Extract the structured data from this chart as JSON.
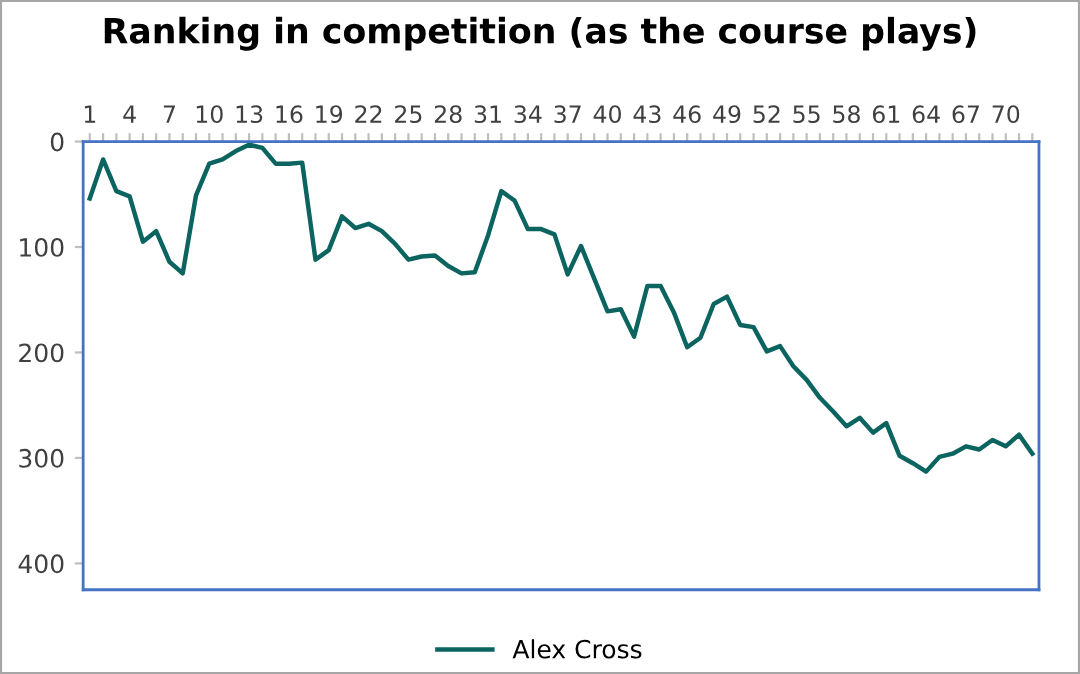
{
  "chart_data": {
    "type": "line",
    "title": "Ranking in competition (as the course plays)",
    "categories": [
      "1",
      null,
      null,
      "4",
      null,
      null,
      "7",
      null,
      null,
      "10",
      null,
      null,
      "13",
      null,
      null,
      "16",
      null,
      null,
      "19",
      null,
      null,
      "22",
      null,
      null,
      "25",
      null,
      null,
      "28",
      null,
      null,
      "31",
      null,
      null,
      "34",
      null,
      null,
      "37",
      null,
      null,
      "40",
      null,
      null,
      "43",
      null,
      null,
      "46",
      null,
      null,
      "49",
      null,
      null,
      "52",
      null,
      null,
      "55",
      null,
      null,
      "58",
      null,
      null,
      "61",
      null,
      null,
      "64",
      null,
      null,
      "67",
      null,
      null,
      "70",
      null,
      null
    ],
    "series": [
      {
        "name": "Alex Cross",
        "color": "#0b6460",
        "values": [
          54,
          17,
          47,
          52,
          95,
          85,
          114,
          125,
          51,
          21,
          17,
          9,
          3,
          6,
          21,
          21,
          20,
          112,
          103,
          71,
          82,
          78,
          85,
          97,
          112,
          109,
          108,
          118,
          125,
          124,
          89,
          47,
          56,
          83,
          83,
          88,
          126,
          99,
          130,
          161,
          159,
          185,
          137,
          137,
          162,
          195,
          186,
          154,
          147,
          174,
          176,
          199,
          194,
          213,
          226,
          243,
          256,
          270,
          262,
          276,
          267,
          298,
          305,
          313,
          299,
          296,
          289,
          292,
          283,
          289,
          278,
          296
        ]
      }
    ],
    "ylim": [
      425,
      0
    ],
    "yticks": [
      0,
      100,
      200,
      300,
      400
    ],
    "grid": false,
    "legend": "bottom",
    "line_style": "solid",
    "marker": "none"
  }
}
